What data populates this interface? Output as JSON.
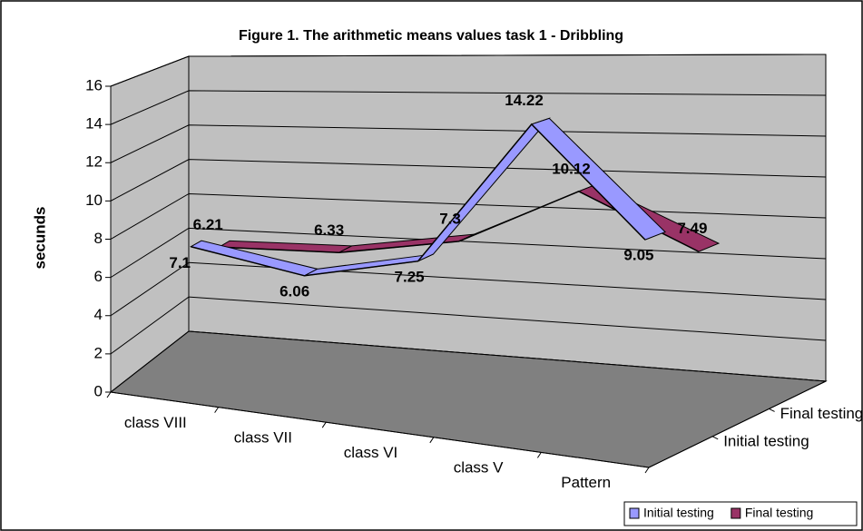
{
  "chart_data": {
    "type": "line3d",
    "title": "Figure 1. The arithmetic means values task 1 - Dribbling",
    "y_label": "secunds",
    "categories": [
      "class VIII",
      "class VII",
      "class VI",
      "class V",
      "Pattern"
    ],
    "series": [
      {
        "name": "Initial testing",
        "color": "#9999ff",
        "values": [
          7.1,
          6.06,
          7.25,
          14.22,
          9.05
        ]
      },
      {
        "name": "Final testing",
        "color": "#993366",
        "values": [
          6.21,
          6.33,
          7.3,
          10.12,
          7.49
        ]
      }
    ],
    "ylim": [
      0,
      16
    ],
    "yticks": [
      0,
      2,
      4,
      6,
      8,
      10,
      12,
      14,
      16
    ],
    "grid": true,
    "legend": "bottom-right"
  }
}
